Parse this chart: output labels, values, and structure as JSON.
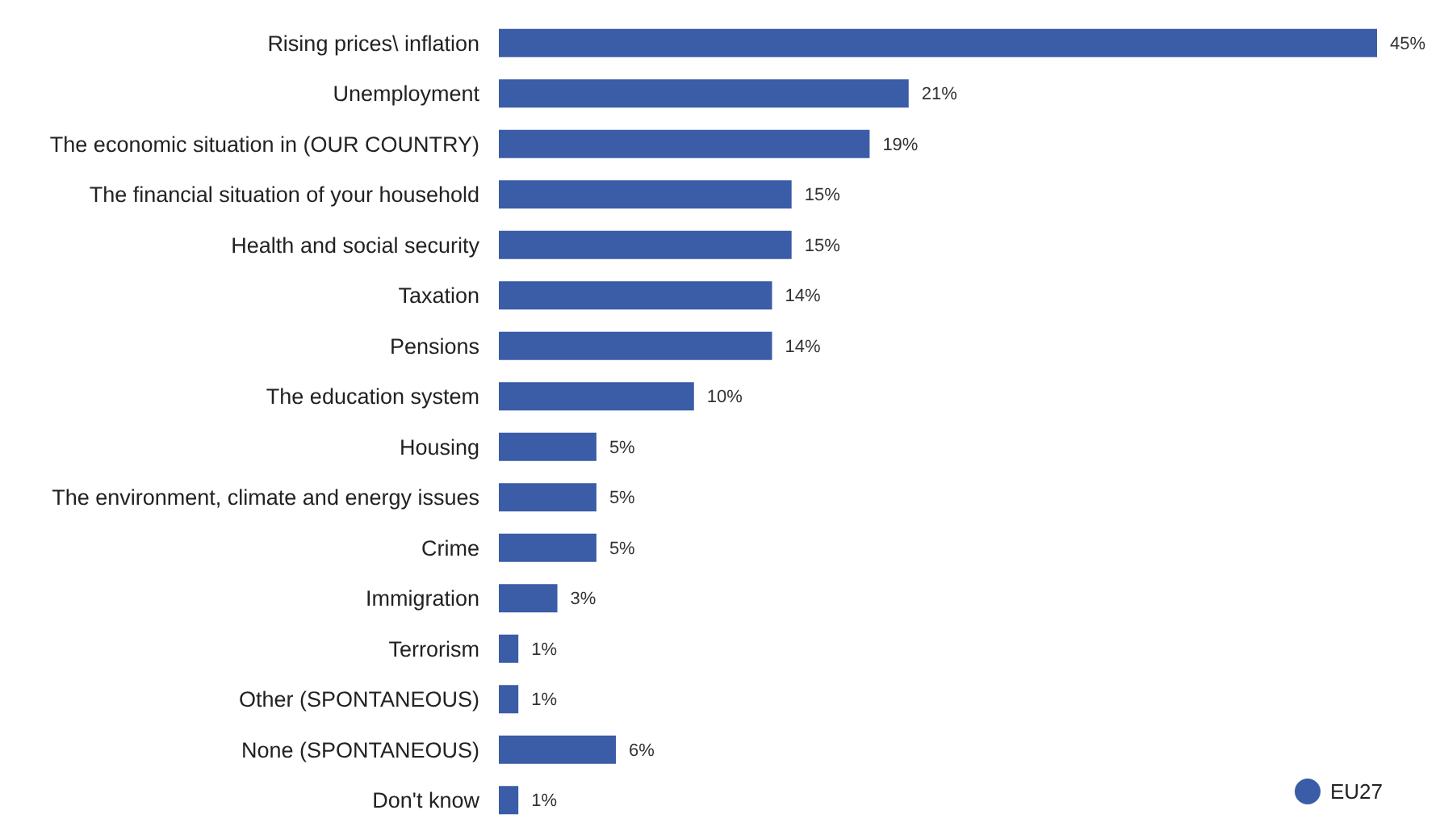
{
  "chart_data": {
    "type": "bar",
    "orientation": "horizontal",
    "categories": [
      "Rising prices\\ inflation",
      "Unemployment",
      "The economic situation in (OUR COUNTRY)",
      "The financial situation of your household",
      "Health and social security",
      "Taxation",
      "Pensions",
      "The education system",
      "Housing",
      "The environment, climate and energy issues",
      "Crime",
      "Immigration",
      "Terrorism",
      "Other (SPONTANEOUS)",
      "None (SPONTANEOUS)",
      "Don't know"
    ],
    "series": [
      {
        "name": "EU27",
        "color": "#3b5ca6",
        "values": [
          45,
          21,
          19,
          15,
          15,
          14,
          14,
          10,
          5,
          5,
          5,
          3,
          1,
          1,
          6,
          1
        ],
        "value_labels": [
          "45%",
          "21%",
          "19%",
          "15%",
          "15%",
          "14%",
          "14%",
          "10%",
          "5%",
          "5%",
          "5%",
          "3%",
          "1%",
          "1%",
          "6%",
          "1%"
        ]
      }
    ],
    "legend": "bottom right"
  }
}
